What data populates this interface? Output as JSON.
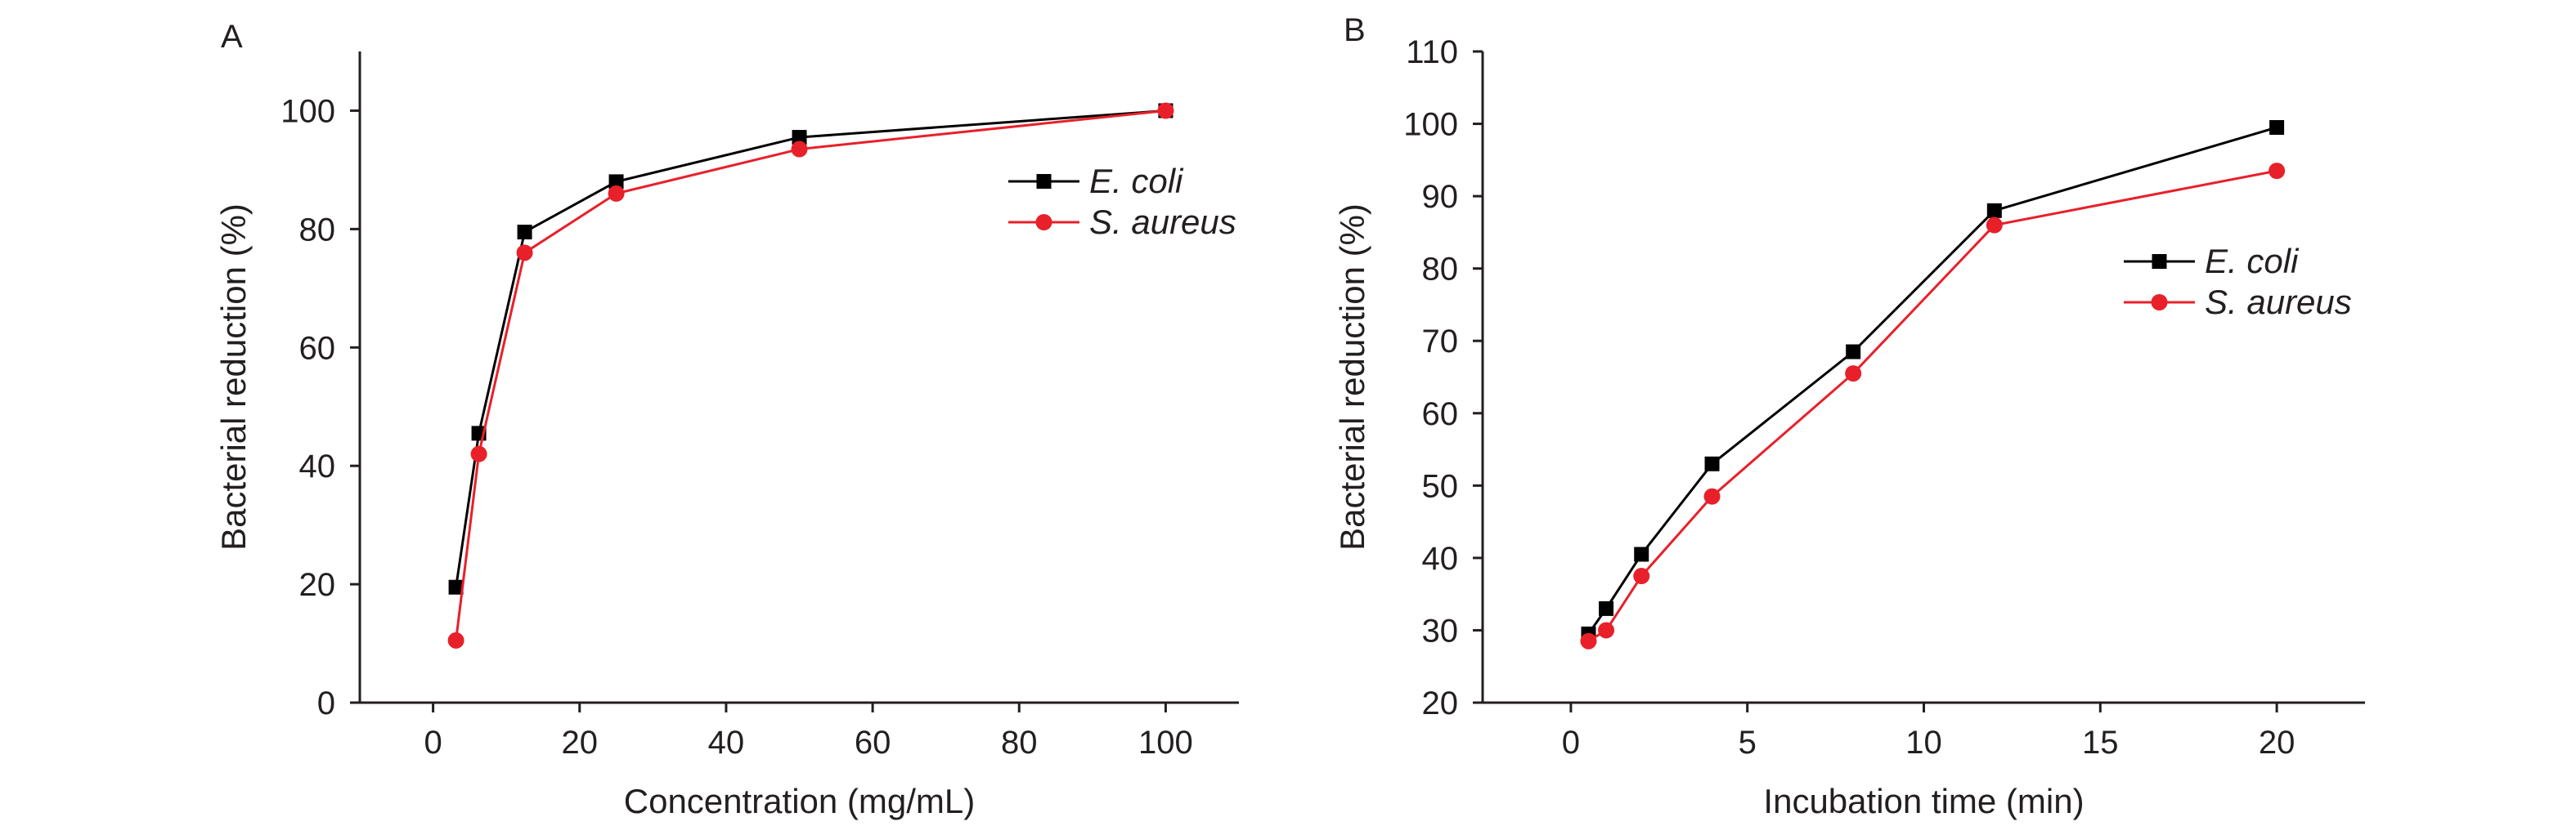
{
  "chart_data": [
    {
      "type": "line",
      "panel_label": "A",
      "xlabel": "Concentration (mg/mL)",
      "ylabel": "Bacterial reduction (%)",
      "xlim": [
        -10,
        110
      ],
      "ylim": [
        0,
        110
      ],
      "xticks": [
        0,
        20,
        40,
        60,
        80,
        100
      ],
      "yticks": [
        0,
        20,
        40,
        60,
        80,
        100
      ],
      "legend_position": "upper-right",
      "series": [
        {
          "name": "E. coli",
          "color": "#000000",
          "marker": "square",
          "x": [
            3.125,
            6.25,
            12.5,
            25,
            50,
            100
          ],
          "y": [
            19.5,
            45.5,
            79.5,
            88,
            95.5,
            100
          ]
        },
        {
          "name": "S. aureus",
          "color": "#e8202a",
          "marker": "circle",
          "x": [
            3.125,
            6.25,
            12.5,
            25,
            50,
            100
          ],
          "y": [
            10.5,
            42,
            76,
            86,
            93.5,
            100
          ]
        }
      ]
    },
    {
      "type": "line",
      "panel_label": "B",
      "xlabel": "Incubation time (min)",
      "ylabel": "Bacterial reduction (%)",
      "xlim": [
        -2.5,
        22.5
      ],
      "ylim": [
        20,
        110
      ],
      "xticks": [
        0,
        5,
        10,
        15,
        20
      ],
      "yticks": [
        20,
        30,
        40,
        50,
        60,
        70,
        80,
        90,
        100,
        110
      ],
      "legend_position": "right",
      "series": [
        {
          "name": "E. coli",
          "color": "#000000",
          "marker": "square",
          "x": [
            0.5,
            1,
            2,
            4,
            8,
            12,
            20
          ],
          "y": [
            29.5,
            33,
            40.5,
            53,
            68.5,
            88,
            99.5
          ]
        },
        {
          "name": "S. aureus",
          "color": "#e8202a",
          "marker": "circle",
          "x": [
            0.5,
            1,
            2,
            4,
            8,
            12,
            20
          ],
          "y": [
            28.5,
            30,
            37.5,
            48.5,
            65.5,
            86,
            93.5
          ]
        }
      ]
    }
  ]
}
